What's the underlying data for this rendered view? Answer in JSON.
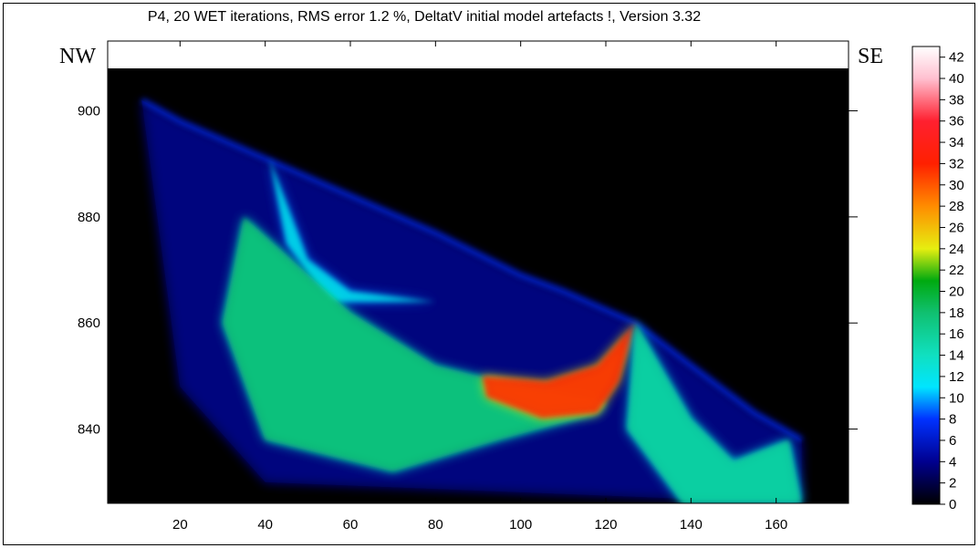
{
  "chart_data": {
    "type": "heatmap",
    "title": "P4, 20 WET iterations, RMS error 1.2 %, DeltatV initial model artefacts !, Version 3.32",
    "left_label": "NW",
    "right_label": "SE",
    "xlabel": "",
    "ylabel": "",
    "xlim": [
      3,
      177
    ],
    "ylim": [
      826,
      908
    ],
    "x_ticks": [
      20,
      40,
      60,
      80,
      100,
      120,
      140,
      160
    ],
    "y_ticks": [
      840,
      860,
      880,
      900
    ],
    "colorbar": {
      "min": 0,
      "max": 43,
      "ticks": [
        0,
        2,
        4,
        6,
        8,
        10,
        12,
        14,
        16,
        18,
        20,
        22,
        24,
        26,
        28,
        30,
        32,
        34,
        36,
        38,
        40,
        42
      ],
      "stops": [
        {
          "v": 0,
          "c": "#000000"
        },
        {
          "v": 4,
          "c": "#00008f"
        },
        {
          "v": 8,
          "c": "#0032ff"
        },
        {
          "v": 11,
          "c": "#00e5ff"
        },
        {
          "v": 14,
          "c": "#10e0c0"
        },
        {
          "v": 18,
          "c": "#10c070"
        },
        {
          "v": 21,
          "c": "#00aa10"
        },
        {
          "v": 24,
          "c": "#e6ee10"
        },
        {
          "v": 28,
          "c": "#ff8c00"
        },
        {
          "v": 32,
          "c": "#ff2000"
        },
        {
          "v": 36,
          "c": "#ff2030"
        },
        {
          "v": 40,
          "c": "#ffc0d0"
        },
        {
          "v": 43,
          "c": "#ffffff"
        }
      ]
    },
    "surface": [
      [
        11,
        902
      ],
      [
        20,
        898
      ],
      [
        40,
        891
      ],
      [
        60,
        884
      ],
      [
        80,
        877
      ],
      [
        100,
        869
      ],
      [
        110,
        866
      ],
      [
        127,
        860
      ],
      [
        140,
        852
      ],
      [
        155,
        843
      ],
      [
        166,
        838
      ]
    ],
    "velocity_features": [
      {
        "name": "upper-nw-lens",
        "max_value": 12,
        "outline": [
          [
            41,
            891
          ],
          [
            50,
            872
          ],
          [
            60,
            866
          ],
          [
            80,
            864
          ],
          [
            55,
            864
          ],
          [
            45,
            875
          ],
          [
            41,
            891
          ]
        ]
      },
      {
        "name": "central-basin",
        "max_value": 18,
        "outline": [
          [
            35,
            880
          ],
          [
            60,
            862
          ],
          [
            80,
            852
          ],
          [
            100,
            848
          ],
          [
            120,
            845
          ],
          [
            118,
            843
          ],
          [
            95,
            838
          ],
          [
            70,
            832
          ],
          [
            40,
            838
          ],
          [
            30,
            860
          ]
        ]
      },
      {
        "name": "high-velocity-wedge",
        "max_value": 32,
        "outline": [
          [
            91,
            850
          ],
          [
            106,
            849
          ],
          [
            118,
            852
          ],
          [
            127,
            860
          ],
          [
            123,
            849
          ],
          [
            118,
            843
          ],
          [
            105,
            842
          ],
          [
            92,
            846
          ]
        ]
      },
      {
        "name": "se-lens",
        "max_value": 16,
        "outline": [
          [
            127,
            860
          ],
          [
            140,
            842
          ],
          [
            150,
            834
          ],
          [
            163,
            838
          ],
          [
            166,
            826
          ],
          [
            138,
            826
          ],
          [
            125,
            840
          ]
        ]
      }
    ]
  }
}
